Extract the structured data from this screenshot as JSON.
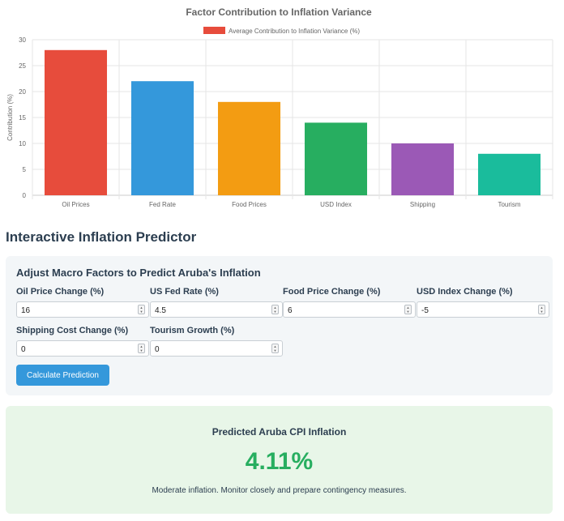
{
  "chart_data": {
    "type": "bar",
    "title": "Factor Contribution to Inflation Variance",
    "categories": [
      "Oil Prices",
      "Fed Rate",
      "Food Prices",
      "USD Index",
      "Shipping",
      "Tourism"
    ],
    "series": [
      {
        "name": "Average Contribution to Inflation Variance (%)",
        "values": [
          28,
          22,
          18,
          14,
          10,
          8
        ]
      }
    ],
    "colors": [
      "#e74c3c",
      "#3498db",
      "#f39c12",
      "#27ae60",
      "#9b59b6",
      "#1abc9c"
    ],
    "legend_color": "#e74c3c",
    "xlabel": "",
    "ylabel": "Contribution (%)",
    "ylim": [
      0,
      30
    ],
    "yticks": [
      0,
      5,
      10,
      15,
      20,
      25,
      30
    ],
    "grid": true,
    "legend_position": "top"
  },
  "predictor": {
    "title": "Interactive Inflation Predictor",
    "panel_heading": "Adjust Macro Factors to Predict Aruba's Inflation",
    "fields": [
      {
        "label": "Oil Price Change (%)",
        "value": "16"
      },
      {
        "label": "US Fed Rate (%)",
        "value": "4.5"
      },
      {
        "label": "Food Price Change (%)",
        "value": "6"
      },
      {
        "label": "USD Index Change (%)",
        "value": "-5"
      },
      {
        "label": "Shipping Cost Change (%)",
        "value": "0"
      },
      {
        "label": "Tourism Growth (%)",
        "value": "0"
      }
    ],
    "button_label": "Calculate Prediction",
    "accent_color": "#3498db"
  },
  "result": {
    "heading": "Predicted Aruba CPI Inflation",
    "value": "4.11%",
    "note": "Moderate inflation. Monitor closely and prepare contingency measures.",
    "value_color": "#27ae60",
    "background": "#e8f6e8"
  }
}
